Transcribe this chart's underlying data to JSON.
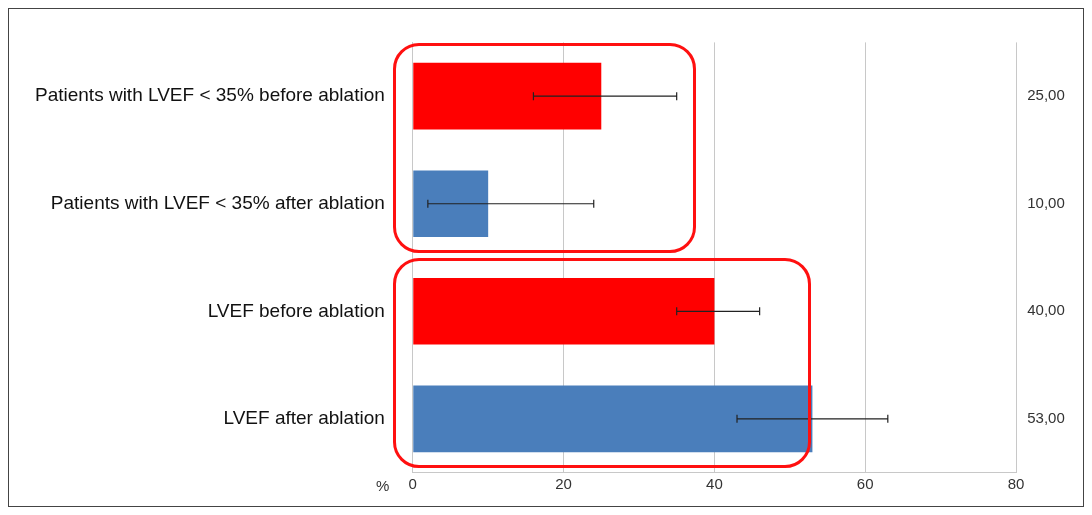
{
  "chart_data": {
    "type": "bar",
    "orientation": "horizontal",
    "categories": [
      "Patients with LVEF < 35% before ablation",
      "Patients with LVEF < 35% after ablation",
      "LVEF before ablation",
      "LVEF after ablation"
    ],
    "values": [
      25,
      10,
      40,
      53
    ],
    "colors": [
      "#ff0000",
      "#4a7ebb",
      "#ff0000",
      "#4a7ebb"
    ],
    "errors": [
      [
        16,
        35
      ],
      [
        2,
        24
      ],
      [
        35,
        46
      ],
      [
        43,
        63
      ]
    ],
    "value_labels": [
      "25,00",
      "10,00",
      "40,00",
      "53,00"
    ],
    "xlabel": "%",
    "xlim": [
      0,
      80
    ],
    "xticks": [
      0,
      20,
      40,
      60,
      80
    ],
    "grid": "x",
    "legend": false
  }
}
